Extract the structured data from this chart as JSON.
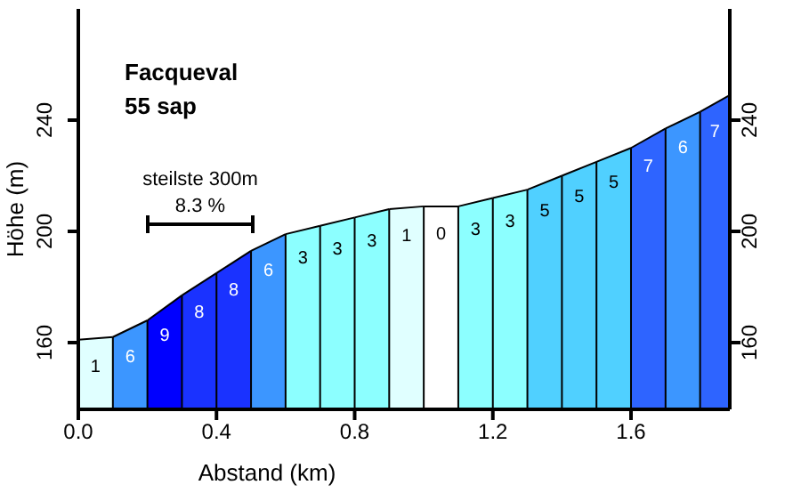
{
  "chart_data": {
    "type": "area",
    "title": "Facqueval",
    "subtitle": "55 sap",
    "xlabel": "Abstand (km)",
    "ylabel": "Höhe (m)",
    "series": [
      {
        "color": "#e0ffff",
        "x": [
          0,
          0.1
        ],
        "values": [
          161,
          162
        ]
      },
      {
        "color": "#3c96ff",
        "x": [
          0.1,
          0.2
        ],
        "values": [
          162,
          168
        ]
      },
      {
        "color": "#0000ff",
        "x": [
          0.2,
          0.3
        ],
        "values": [
          168,
          177
        ]
      },
      {
        "color": "#1a32ff",
        "x": [
          0.3,
          0.4
        ],
        "values": [
          177,
          185
        ]
      },
      {
        "color": "#1a32ff",
        "x": [
          0.4,
          0.5
        ],
        "values": [
          185,
          193
        ]
      },
      {
        "color": "#3c96ff",
        "x": [
          0.5,
          0.6
        ],
        "values": [
          193,
          199
        ]
      },
      {
        "color": "#8cffff",
        "x": [
          0.6,
          0.7
        ],
        "values": [
          199,
          202
        ]
      },
      {
        "color": "#8cffff",
        "x": [
          0.7,
          0.8
        ],
        "values": [
          202,
          205
        ]
      },
      {
        "color": "#8cffff",
        "x": [
          0.8,
          0.9
        ],
        "values": [
          205,
          208
        ]
      },
      {
        "color": "#e0ffff",
        "x": [
          0.9,
          1.0
        ],
        "values": [
          208,
          209
        ]
      },
      {
        "color": "#ffffff",
        "x": [
          1.0,
          1.1
        ],
        "values": [
          209,
          209
        ]
      },
      {
        "color": "#8cffff",
        "x": [
          1.1,
          1.2
        ],
        "values": [
          209,
          212
        ]
      },
      {
        "color": "#8cffff",
        "x": [
          1.2,
          1.3
        ],
        "values": [
          212,
          215
        ]
      },
      {
        "color": "#50d0ff",
        "x": [
          1.3,
          1.4
        ],
        "values": [
          215,
          220
        ]
      },
      {
        "color": "#50d0ff",
        "x": [
          1.4,
          1.5
        ],
        "values": [
          220,
          225
        ]
      },
      {
        "color": "#50d0ff",
        "x": [
          1.5,
          1.6
        ],
        "values": [
          225,
          230
        ]
      },
      {
        "color": "#2e64ff",
        "x": [
          1.6,
          1.7
        ],
        "values": [
          230,
          237
        ]
      },
      {
        "color": "#3c96ff",
        "x": [
          1.7,
          1.8
        ],
        "values": [
          237,
          243
        ]
      },
      {
        "color": "#2e64ff",
        "x": [
          1.8,
          1.886
        ],
        "values": [
          243,
          249
        ]
      }
    ],
    "xlim": [
      0,
      1.886
    ],
    "xticks": [
      {
        "value": 0,
        "label": "0.0"
      },
      0.4,
      0.8,
      1.2,
      1.6
    ],
    "ylim": [
      136,
      280
    ],
    "yticks": [
      160,
      200,
      240
    ],
    "y2lim": [
      136,
      280
    ],
    "y2ticks": [
      160,
      200,
      240
    ],
    "annotations": [
      {
        "text": "1",
        "x": 0.05,
        "y": 161.5
      },
      {
        "text": "6",
        "x": 0.15,
        "y": 165
      },
      {
        "text": "9",
        "x": 0.25,
        "y": 172.5
      },
      {
        "text": "8",
        "x": 0.35,
        "y": 181
      },
      {
        "text": "8",
        "x": 0.45,
        "y": 189
      },
      {
        "text": "6",
        "x": 0.55,
        "y": 196
      },
      {
        "text": "3",
        "x": 0.65,
        "y": 200.5
      },
      {
        "text": "3",
        "x": 0.75,
        "y": 203.5
      },
      {
        "text": "3",
        "x": 0.85,
        "y": 206.5
      },
      {
        "text": "1",
        "x": 0.95,
        "y": 208.5
      },
      {
        "text": "0",
        "x": 1.05,
        "y": 209
      },
      {
        "text": "3",
        "x": 1.15,
        "y": 210.5
      },
      {
        "text": "3",
        "x": 1.25,
        "y": 213.5
      },
      {
        "text": "5",
        "x": 1.35,
        "y": 217.5
      },
      {
        "text": "5",
        "x": 1.45,
        "y": 222.5
      },
      {
        "text": "5",
        "x": 1.55,
        "y": 227.5
      },
      {
        "text": "7",
        "x": 1.65,
        "y": 233.5
      },
      {
        "text": "6",
        "x": 1.75,
        "y": 240
      },
      {
        "text": "7",
        "x": 1.843,
        "y": 246
      },
      "steilste 300m\n8.3 %"
    ]
  }
}
